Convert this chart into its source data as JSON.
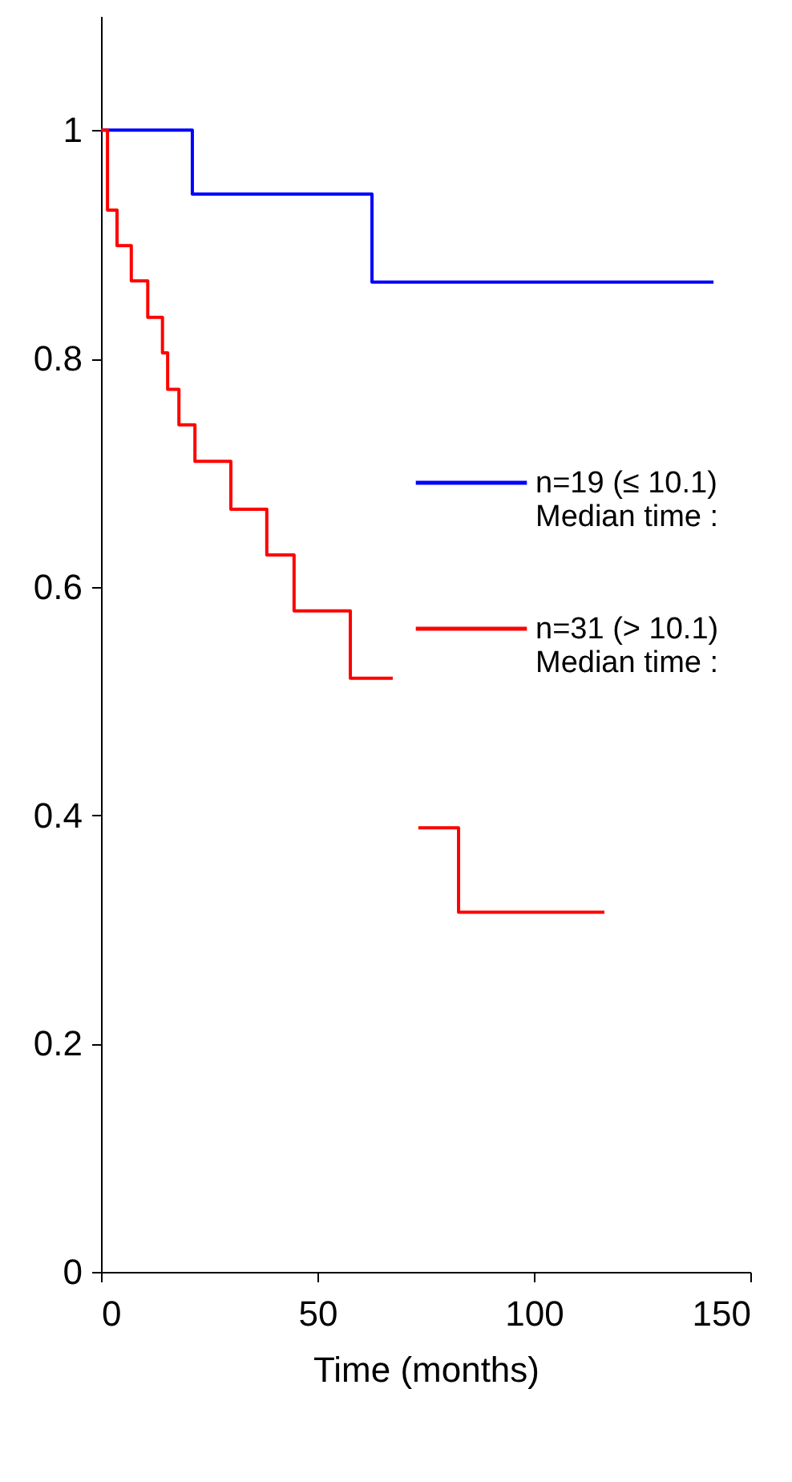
{
  "chart_data": {
    "type": "step",
    "xlabel": "Time (months)",
    "xlim": [
      0,
      150
    ],
    "xticks": [
      0,
      50,
      100,
      150
    ],
    "ylim": [
      0,
      1.1
    ],
    "yticks": [
      0,
      0.2,
      0.4,
      0.6,
      0.8,
      1
    ],
    "grid": false,
    "legend": "right",
    "line_style": "solid",
    "series": [
      {
        "name": "n=19 (≤ 10.1)\nMedian time :",
        "color": "#0000ff",
        "x": [
          0,
          21.1,
          62.6,
          141.5
        ],
        "values": [
          1,
          0.944,
          0.867,
          0.867
        ]
      },
      {
        "name": "n=31 (> 10.1)\nMedian time :",
        "color": "#ff0000",
        "x": [
          0,
          1.5,
          3.7,
          7.0,
          10.8,
          14.2,
          15.4,
          18.0,
          21.7,
          30.0,
          38.3,
          44.6,
          57.6,
          67.4,
          70,
          73.3,
          82.6,
          116.3
        ],
        "values": [
          1,
          0.93,
          0.899,
          0.868,
          0.836,
          0.805,
          0.773,
          0.742,
          0.71,
          0.668,
          0.628,
          0.579,
          0.52,
          0.52,
          null,
          0.389,
          0.315,
          0.315
        ]
      }
    ]
  }
}
